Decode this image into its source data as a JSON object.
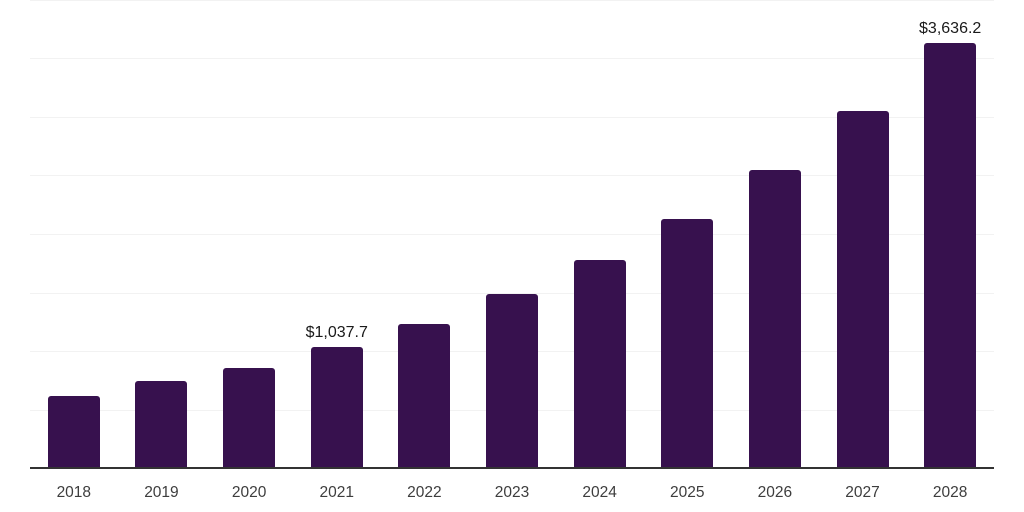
{
  "chart_data": {
    "type": "bar",
    "title": "",
    "xlabel": "",
    "ylabel": "",
    "categories": [
      "2018",
      "2019",
      "2020",
      "2021",
      "2022",
      "2023",
      "2024",
      "2025",
      "2026",
      "2027",
      "2028"
    ],
    "values": [
      620,
      750,
      860,
      1037.7,
      1240,
      1490,
      1780,
      2130,
      2550,
      3055,
      3636.2
    ],
    "value_labels": [
      "",
      "",
      "",
      "$1,037.7",
      "",
      "",
      "",
      "",
      "",
      "",
      "$3,636.2"
    ],
    "ylim": [
      0,
      4000
    ],
    "grid_interval": 500,
    "grid": true,
    "legend": false,
    "y_axis_tick_labels_visible": false,
    "colors": {
      "bar": "#37114E",
      "axis": "#333333",
      "gridline": "#f2f2f2",
      "value_label": "#1a1a1a",
      "tick_label": "#3d3d3d",
      "background": "#ffffff"
    }
  }
}
